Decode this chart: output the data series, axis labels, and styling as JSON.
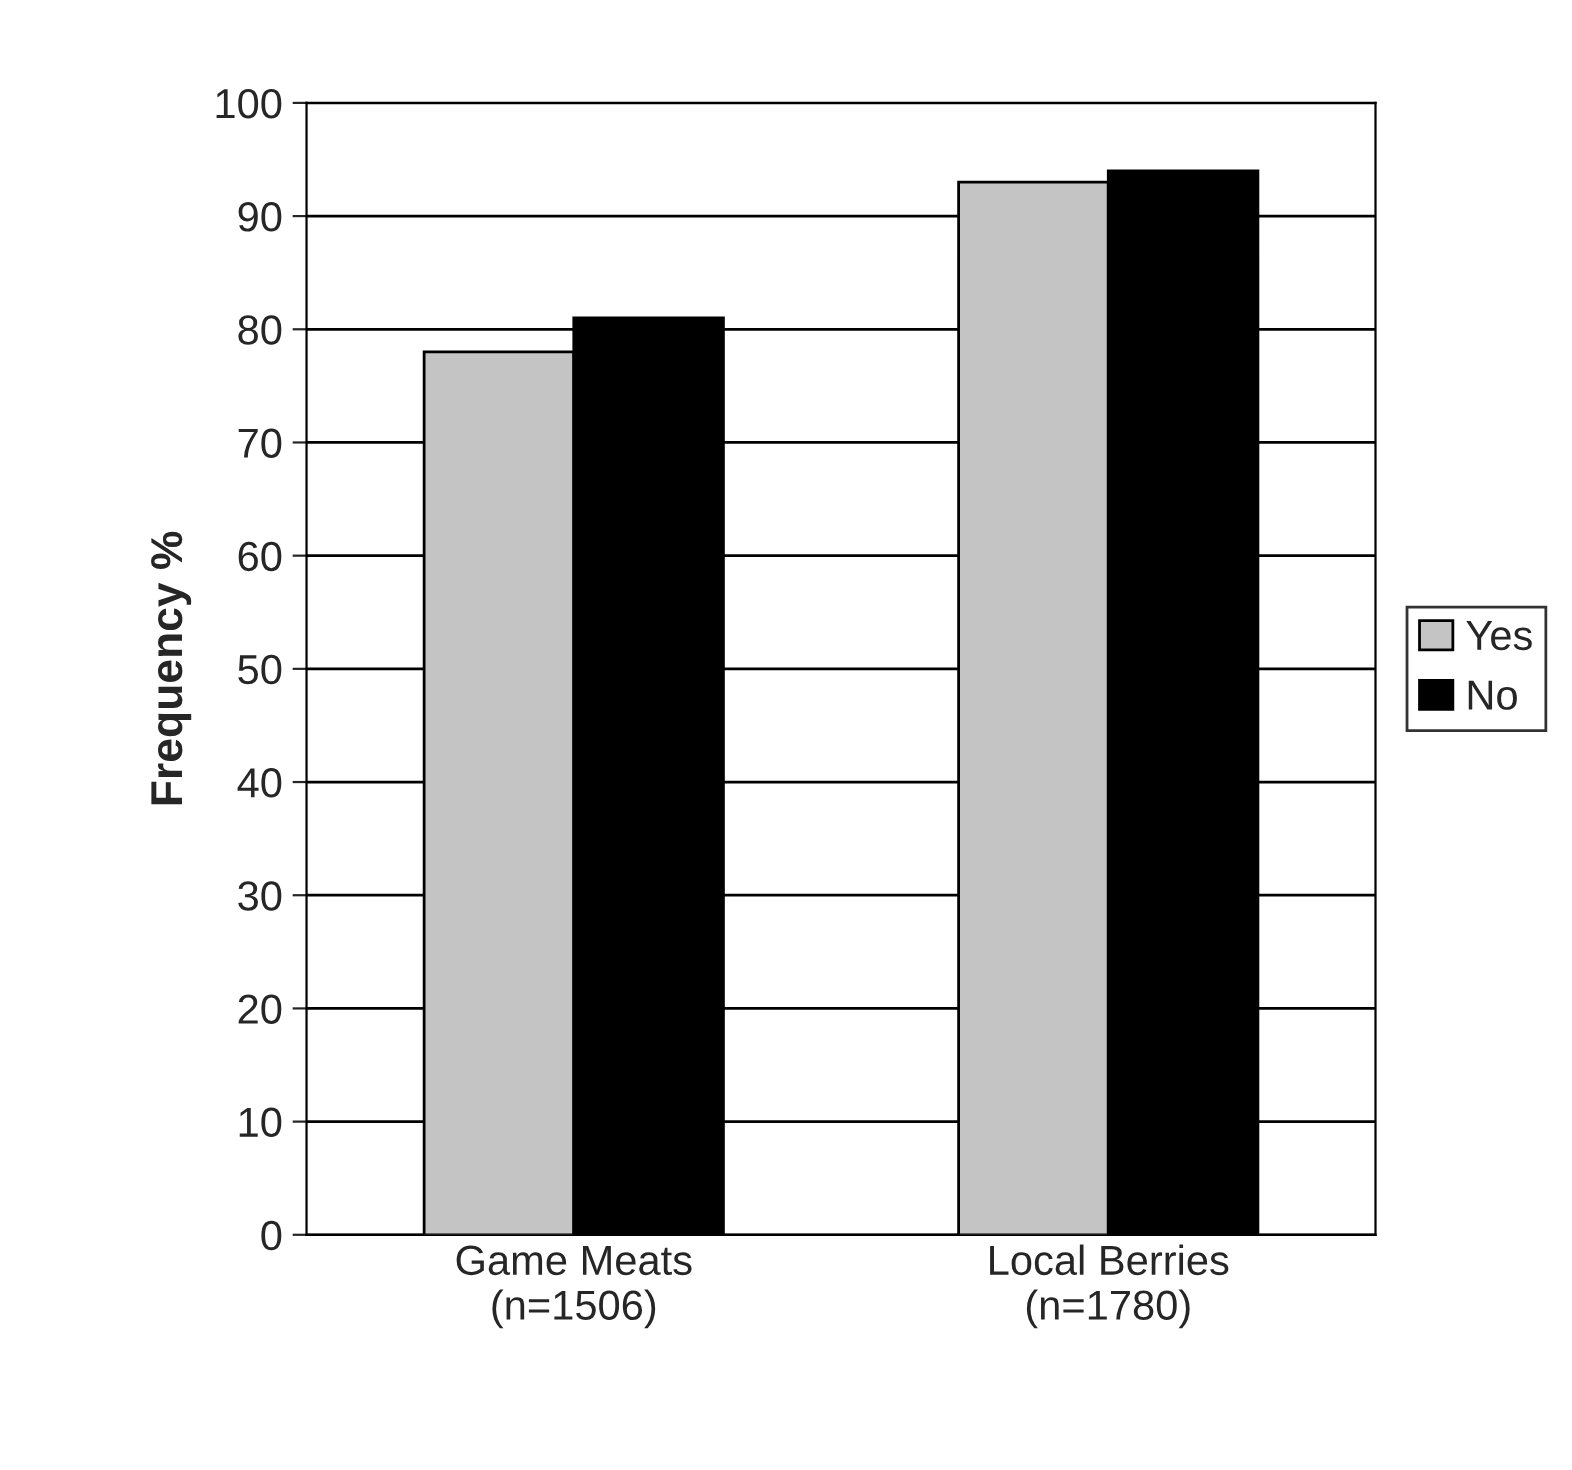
{
  "chart_data": {
    "type": "bar",
    "ylabel": "Frequency %",
    "categories": [
      "Game Meats\n(n=1506)",
      "Local Berries\n(n=1780)"
    ],
    "series": [
      {
        "name": "Yes",
        "color": "#c4c4c4",
        "values": [
          78,
          93
        ]
      },
      {
        "name": "No",
        "color": "#000000",
        "values": [
          81,
          94
        ]
      }
    ],
    "ylim": [
      0,
      100
    ],
    "yticks": [
      0,
      10,
      20,
      30,
      40,
      50,
      60,
      70,
      80,
      90,
      100
    ],
    "grid": "y",
    "legend": "right"
  }
}
